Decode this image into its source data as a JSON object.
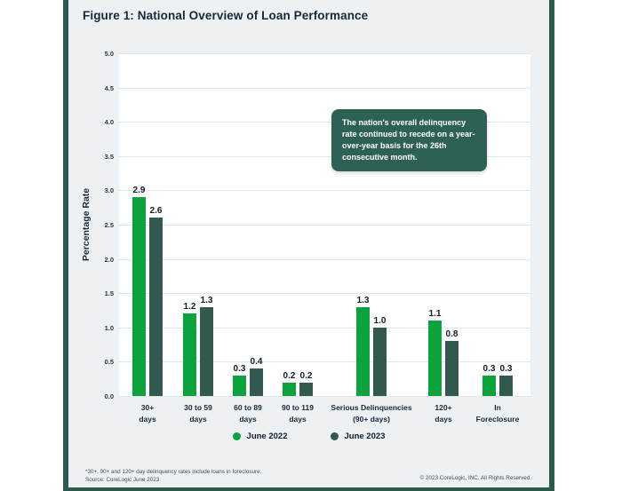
{
  "title": "Figure 1: National Overview of Loan Performance",
  "annotation": {
    "text": "The nation's overall delinquency rate continued to recede on a year-over-year basis for the 26th consecutive month."
  },
  "chart_data": {
    "type": "bar",
    "title": "Figure 1: National Overview of Loan Performance",
    "xlabel": "",
    "ylabel": "Percentage Rate",
    "ylim": [
      0,
      5
    ],
    "ytick_step": 0.5,
    "grid": true,
    "legend_position": "bottom",
    "categories": [
      "30+\ndays",
      "30 to 59\ndays",
      "60 to 89\ndays",
      "90 to 119\ndays",
      "Serious Delinquencies\n(90+ days)",
      "120+\ndays",
      "In\nForeclosure"
    ],
    "series": [
      {
        "name": "June 2022",
        "color": "#0ca33d",
        "values": [
          2.9,
          1.2,
          0.3,
          0.2,
          1.3,
          1.1,
          0.3
        ]
      },
      {
        "name": "June 2023",
        "color": "#31594f",
        "values": [
          2.6,
          1.3,
          0.4,
          0.2,
          1.0,
          0.8,
          0.3
        ]
      }
    ]
  },
  "footer": {
    "note_line1": "*30+, 90+ and 120+ day delinquency rates include loans in foreclosure.",
    "note_line2": "Source: CoreLogic June 2023",
    "copyright": "© 2023 CoreLogic, INC. All Rights Reserved."
  },
  "colors": {
    "frame": "#2b5b4f",
    "panel_bg": "#edf1f4",
    "plot_bg": "#ffffff",
    "gridline": "#e0e6ea",
    "text_dark": "#16293a",
    "annotation_bg": "#2e6156",
    "green": "#0ca33d",
    "teal": "#31594f"
  }
}
